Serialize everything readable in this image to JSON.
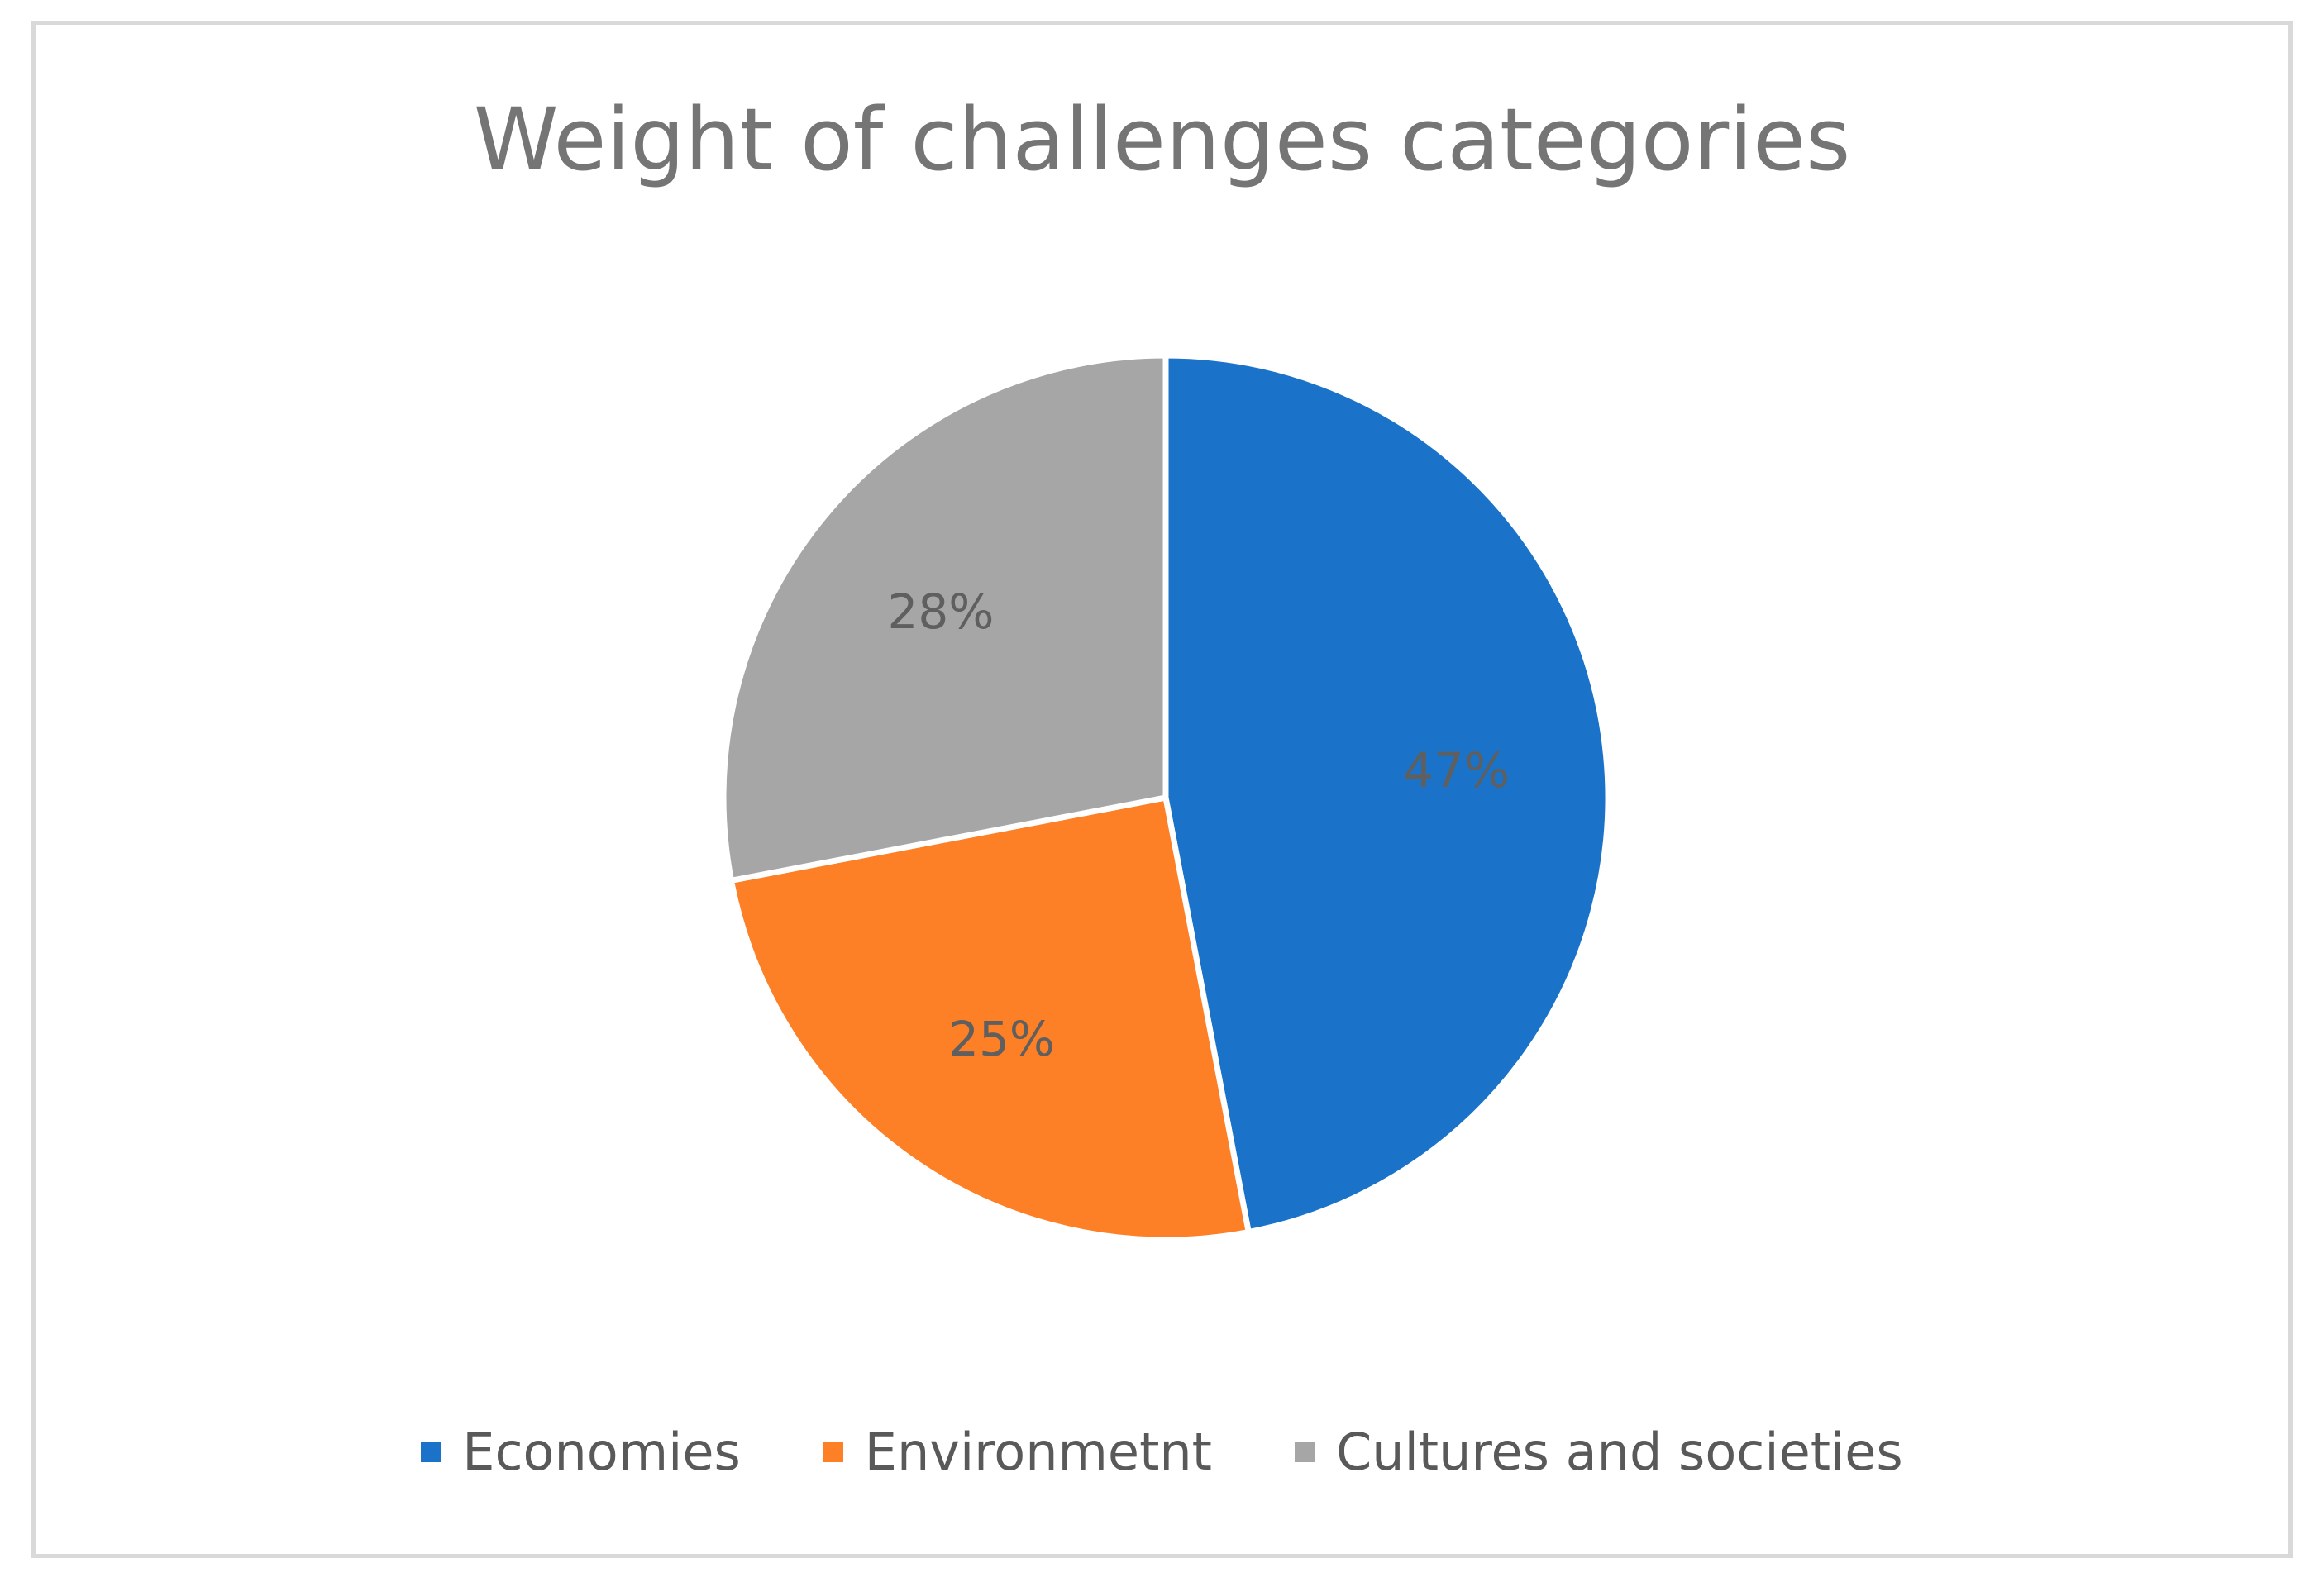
{
  "chart_data": {
    "type": "pie",
    "title": "Weight of challenges categories",
    "categories": [
      "Economies",
      "Environmetnt",
      "Cultures and societies"
    ],
    "values": [
      47,
      25,
      28
    ],
    "labels": [
      "47%",
      "25%",
      "28%"
    ],
    "colors": [
      "#1a73c8",
      "#fd7f26",
      "#a6a6a6"
    ],
    "legend_position": "bottom",
    "start_angle": "12 o'clock",
    "direction": "clockwise"
  }
}
